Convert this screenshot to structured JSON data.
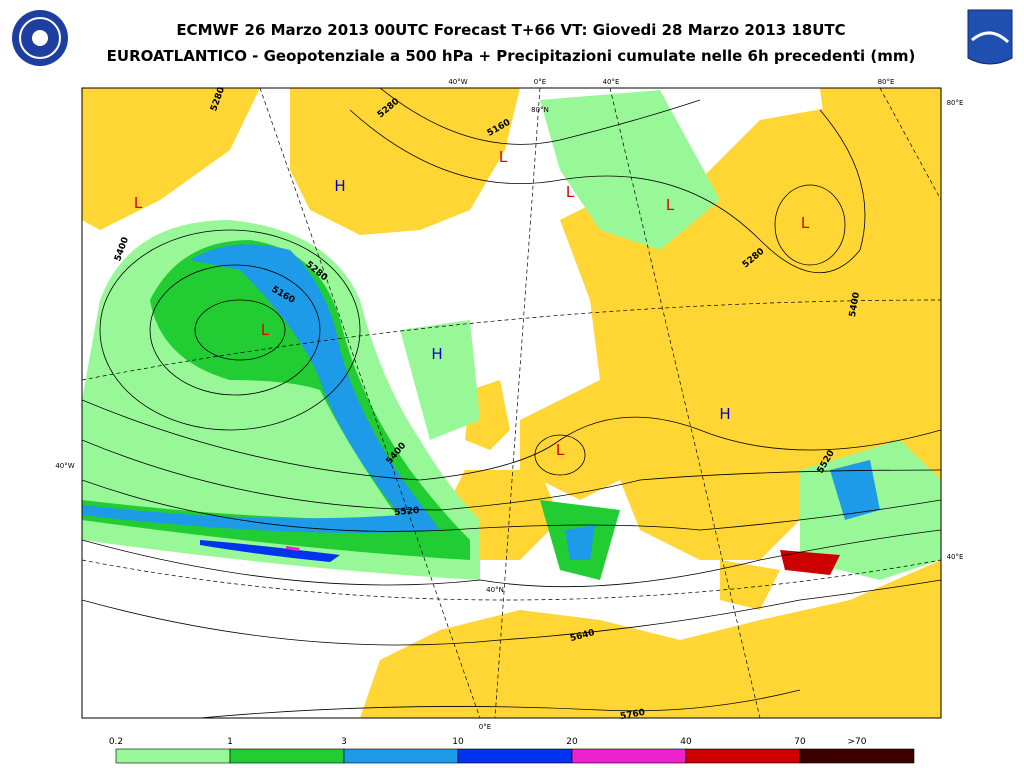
{
  "header": {
    "title": "ECMWF 26 Marzo 2013 00UTC Forecast T+66 VT: Giovedi 28 Marzo 2013 18UTC",
    "subtitle": "EUROATLANTICO - Geopotenziale a 500 hPa + Precipitazioni cumulate nelle 6h precedenti (mm)"
  },
  "map": {
    "pressure_centers": [
      {
        "label": "L",
        "color": "#e00000"
      },
      {
        "label": "H",
        "color": "#0000cc"
      },
      {
        "label": "L",
        "color": "#e00000"
      },
      {
        "label": "L",
        "color": "#e00000"
      },
      {
        "label": "L",
        "color": "#e00000"
      },
      {
        "label": "L",
        "color": "#e00000"
      },
      {
        "label": "L",
        "color": "#e00000"
      },
      {
        "label": "H",
        "color": "#0000cc"
      },
      {
        "label": "H",
        "color": "#0000cc"
      },
      {
        "label": "L",
        "color": "#e00000"
      }
    ],
    "contour_labels": [
      "5400",
      "5280",
      "5280",
      "5160",
      "5280",
      "5160",
      "5400",
      "5520",
      "5640",
      "5760",
      "5280",
      "5400",
      "5520"
    ],
    "graticule_labels": [
      "40°W",
      "0°E",
      "40°E",
      "80°E",
      "80°E",
      "80°N",
      "40°W",
      "40°E",
      "40°N",
      "0°E"
    ]
  },
  "legend": {
    "labels": [
      "0.2",
      "1",
      "3",
      "10",
      "20",
      "40",
      "70",
      ">70"
    ],
    "colors": [
      "#98f898",
      "#22cc33",
      "#1e9be8",
      "#0033ee",
      "#ee22cc",
      "#cc0000",
      "#3d0000"
    ]
  }
}
